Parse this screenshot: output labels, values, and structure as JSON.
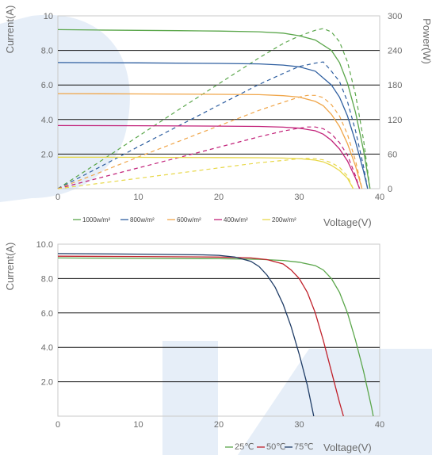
{
  "colors": {
    "background": "#ffffff",
    "watermark": "#e6eef8",
    "frame": "#c9c9c9",
    "grid": "#111111",
    "tick_text": "#6b6b6b"
  },
  "chart_data": [
    {
      "type": "line",
      "chart_id": "iv_pv_irradiance",
      "xlabel": "Voltage(V)",
      "ylabel": "Current(A)",
      "y2label": "Power(W)",
      "xlim": [
        0,
        40
      ],
      "ylim": [
        0,
        10
      ],
      "y2lim": [
        0,
        300
      ],
      "x_ticks": [
        "0",
        "10",
        "20",
        "30",
        "40"
      ],
      "y_ticks": [
        "2.0",
        "4.0",
        "6.0",
        "8.0",
        "10"
      ],
      "y2_ticks": [
        "0",
        "60",
        "120",
        "180",
        "240",
        "300"
      ],
      "grid": true,
      "legend_position": "bottom",
      "series": [
        {
          "name": "1000w/m²",
          "color": "#5aa64a",
          "current": [
            [
              0,
              9.2
            ],
            [
              5,
              9.18
            ],
            [
              10,
              9.16
            ],
            [
              15,
              9.14
            ],
            [
              20,
              9.12
            ],
            [
              25,
              9.08
            ],
            [
              28,
              9.0
            ],
            [
              30,
              8.85
            ],
            [
              32,
              8.6
            ],
            [
              34,
              8.0
            ],
            [
              35,
              7.3
            ],
            [
              36,
              6.1
            ],
            [
              37,
              4.4
            ],
            [
              38,
              2.2
            ],
            [
              38.8,
              0
            ]
          ],
          "power": [
            [
              0,
              0
            ],
            [
              5,
              45
            ],
            [
              10,
              91
            ],
            [
              15,
              137
            ],
            [
              20,
              182
            ],
            [
              25,
              227
            ],
            [
              28,
              252
            ],
            [
              30,
              265
            ],
            [
              32,
              275
            ],
            [
              33,
              278
            ],
            [
              34,
              272
            ],
            [
              35,
              255
            ],
            [
              36,
              220
            ],
            [
              37,
              163
            ],
            [
              38,
              84
            ],
            [
              38.8,
              0
            ]
          ]
        },
        {
          "name": "800w/m²",
          "color": "#2f5fa0",
          "current": [
            [
              0,
              7.3
            ],
            [
              10,
              7.28
            ],
            [
              20,
              7.25
            ],
            [
              25,
              7.22
            ],
            [
              28,
              7.15
            ],
            [
              30,
              7.05
            ],
            [
              32,
              6.8
            ],
            [
              34,
              6.0
            ],
            [
              35,
              5.3
            ],
            [
              36,
              4.2
            ],
            [
              37,
              2.7
            ],
            [
              38,
              1.0
            ],
            [
              38.5,
              0
            ]
          ],
          "power": [
            [
              0,
              0
            ],
            [
              5,
              36
            ],
            [
              10,
              73
            ],
            [
              15,
              109
            ],
            [
              20,
              145
            ],
            [
              25,
              181
            ],
            [
              28,
              200
            ],
            [
              30,
              212
            ],
            [
              32,
              218
            ],
            [
              33,
              220
            ],
            [
              34,
              204
            ],
            [
              35,
              186
            ],
            [
              36,
              151
            ],
            [
              37,
              100
            ],
            [
              38,
              38
            ],
            [
              38.5,
              0
            ]
          ]
        },
        {
          "name": "600w/m²",
          "color": "#f0a64a",
          "current": [
            [
              0,
              5.5
            ],
            [
              10,
              5.48
            ],
            [
              20,
              5.46
            ],
            [
              25,
              5.44
            ],
            [
              28,
              5.38
            ],
            [
              30,
              5.3
            ],
            [
              32,
              5.05
            ],
            [
              33,
              4.8
            ],
            [
              34,
              4.3
            ],
            [
              35,
              3.6
            ],
            [
              36,
              2.6
            ],
            [
              37,
              1.3
            ],
            [
              37.8,
              0
            ]
          ],
          "power": [
            [
              0,
              0
            ],
            [
              5,
              27
            ],
            [
              10,
              55
            ],
            [
              15,
              82
            ],
            [
              20,
              109
            ],
            [
              25,
              136
            ],
            [
              28,
              150
            ],
            [
              30,
              159
            ],
            [
              31,
              162
            ],
            [
              32,
              162
            ],
            [
              33,
              158
            ],
            [
              34,
              146
            ],
            [
              35,
              126
            ],
            [
              36,
              94
            ],
            [
              37,
              48
            ],
            [
              37.8,
              0
            ]
          ]
        },
        {
          "name": "400w/m²",
          "color": "#c2237a",
          "current": [
            [
              0,
              3.65
            ],
            [
              10,
              3.64
            ],
            [
              20,
              3.62
            ],
            [
              25,
              3.6
            ],
            [
              28,
              3.56
            ],
            [
              30,
              3.5
            ],
            [
              32,
              3.35
            ],
            [
              33,
              3.15
            ],
            [
              34,
              2.8
            ],
            [
              35,
              2.3
            ],
            [
              36,
              1.6
            ],
            [
              37,
              0.6
            ],
            [
              37.5,
              0
            ]
          ],
          "power": [
            [
              0,
              0
            ],
            [
              5,
              18
            ],
            [
              10,
              36
            ],
            [
              15,
              54
            ],
            [
              20,
              72
            ],
            [
              25,
              90
            ],
            [
              28,
              100
            ],
            [
              30,
              105
            ],
            [
              31,
              107
            ],
            [
              32,
              107
            ],
            [
              33,
              104
            ],
            [
              34,
              95
            ],
            [
              35,
              80
            ],
            [
              36,
              58
            ],
            [
              37,
              22
            ],
            [
              37.5,
              0
            ]
          ]
        },
        {
          "name": "200w/m²",
          "color": "#e8d84a",
          "current": [
            [
              0,
              1.82
            ],
            [
              10,
              1.81
            ],
            [
              20,
              1.8
            ],
            [
              25,
              1.79
            ],
            [
              28,
              1.77
            ],
            [
              30,
              1.74
            ],
            [
              32,
              1.65
            ],
            [
              33,
              1.55
            ],
            [
              34,
              1.35
            ],
            [
              35,
              1.05
            ],
            [
              36,
              0.6
            ],
            [
              36.7,
              0
            ]
          ],
          "power": [
            [
              0,
              0
            ],
            [
              5,
              9
            ],
            [
              10,
              18
            ],
            [
              15,
              27
            ],
            [
              20,
              36
            ],
            [
              25,
              45
            ],
            [
              28,
              49
            ],
            [
              30,
              52
            ],
            [
              31,
              52.5
            ],
            [
              32,
              52
            ],
            [
              33,
              50
            ],
            [
              34,
              45
            ],
            [
              35,
              37
            ],
            [
              36,
              22
            ],
            [
              36.7,
              0
            ]
          ]
        }
      ]
    },
    {
      "type": "line",
      "chart_id": "iv_temperature",
      "xlabel": "Voltage(V)",
      "ylabel": "Current(A)",
      "xlim": [
        0,
        40
      ],
      "ylim": [
        0,
        10
      ],
      "x_ticks": [
        "0",
        "10",
        "20",
        "30",
        "40"
      ],
      "y_ticks": [
        "2.0",
        "4.0",
        "6.0",
        "8.0",
        "10.0"
      ],
      "grid": true,
      "legend_position": "bottom-right",
      "series": [
        {
          "name": "25℃",
          "color": "#5aa64a",
          "current": [
            [
              0,
              9.2
            ],
            [
              10,
              9.17
            ],
            [
              20,
              9.15
            ],
            [
              25,
              9.12
            ],
            [
              28,
              9.05
            ],
            [
              30,
              8.95
            ],
            [
              32,
              8.75
            ],
            [
              33,
              8.5
            ],
            [
              34,
              8.0
            ],
            [
              35,
              7.2
            ],
            [
              36,
              6.0
            ],
            [
              37,
              4.4
            ],
            [
              38,
              2.6
            ],
            [
              39,
              0.5
            ],
            [
              39.2,
              0
            ]
          ]
        },
        {
          "name": "50℃",
          "color": "#c0202a",
          "current": [
            [
              0,
              9.3
            ],
            [
              10,
              9.28
            ],
            [
              20,
              9.25
            ],
            [
              24,
              9.2
            ],
            [
              26,
              9.1
            ],
            [
              28,
              8.85
            ],
            [
              29,
              8.5
            ],
            [
              30,
              8.0
            ],
            [
              31,
              7.2
            ],
            [
              32,
              6.0
            ],
            [
              33,
              4.4
            ],
            [
              34,
              2.6
            ],
            [
              35,
              0.8
            ],
            [
              35.5,
              0
            ]
          ]
        },
        {
          "name": "75℃",
          "color": "#1f3c66",
          "current": [
            [
              0,
              9.45
            ],
            [
              10,
              9.42
            ],
            [
              18,
              9.38
            ],
            [
              20,
              9.35
            ],
            [
              22,
              9.25
            ],
            [
              24,
              9.0
            ],
            [
              25,
              8.7
            ],
            [
              26,
              8.2
            ],
            [
              27,
              7.5
            ],
            [
              28,
              6.5
            ],
            [
              29,
              5.2
            ],
            [
              30,
              3.6
            ],
            [
              31,
              1.8
            ],
            [
              31.8,
              0
            ]
          ]
        }
      ]
    }
  ]
}
